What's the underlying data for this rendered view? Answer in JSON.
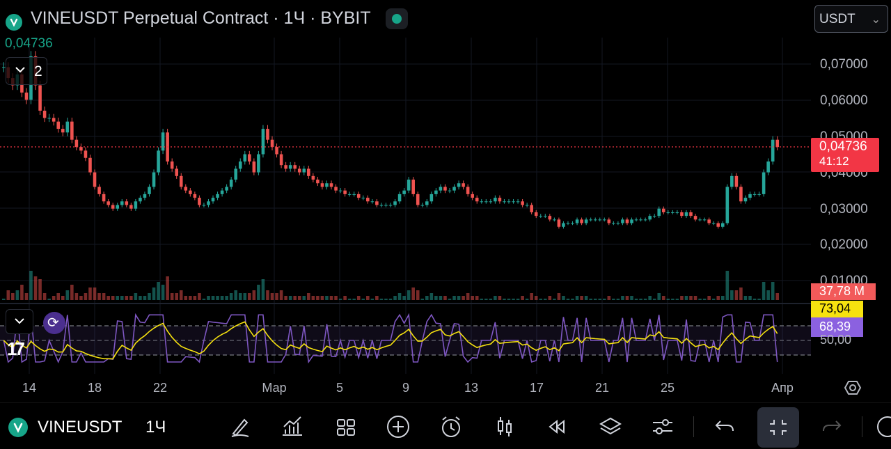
{
  "header": {
    "title": "VINEUSDT Perpetual Contract · 1Ч · BYBIT",
    "currency": "USDT",
    "last_price": "0,04736",
    "indicator_count": "2"
  },
  "price_axis": {
    "labels": [
      "0,07000",
      "0,06000",
      "0,05000",
      "0,04000",
      "0,03000",
      "0,02000",
      "0,01000"
    ]
  },
  "tags": {
    "price": "0,04736",
    "countdown": "41:12",
    "volume": "37,78 M",
    "rsi_ma": "73,04",
    "rsi": "68,39",
    "rsi_mid": "50,00"
  },
  "time_axis": {
    "labels": [
      "14",
      "18",
      "22",
      "Мар",
      "5",
      "9",
      "13",
      "17",
      "21",
      "25",
      "Апр"
    ]
  },
  "bottom_bar": {
    "symbol": "VINEUSDT",
    "interval": "1Ч",
    "tools": [
      "draw-icon",
      "indicators-icon",
      "layouts-icon",
      "add-icon",
      "alert-icon",
      "chart-type-icon",
      "replay-icon",
      "layers-icon",
      "settings-sliders-icon",
      "undo-icon",
      "fullscreen-exit-icon",
      "redo-icon"
    ]
  },
  "colors": {
    "up": "#26a69a",
    "down": "#ef5350",
    "rsi": "#7e57c2",
    "rsi_ma": "#f6e20f",
    "price_line": "#f23645"
  },
  "chart_data": {
    "type": "candlestick",
    "y_range": [
      0.005,
      0.076
    ],
    "last": 0.04736,
    "closes": [
      0.069,
      0.066,
      0.064,
      0.067,
      0.062,
      0.06,
      0.072,
      0.064,
      0.057,
      0.055,
      0.055,
      0.054,
      0.052,
      0.051,
      0.054,
      0.049,
      0.047,
      0.046,
      0.044,
      0.04,
      0.036,
      0.034,
      0.032,
      0.031,
      0.03,
      0.031,
      0.032,
      0.031,
      0.03,
      0.032,
      0.033,
      0.034,
      0.036,
      0.04,
      0.046,
      0.051,
      0.043,
      0.041,
      0.039,
      0.036,
      0.035,
      0.034,
      0.033,
      0.031,
      0.031,
      0.032,
      0.033,
      0.034,
      0.035,
      0.036,
      0.038,
      0.041,
      0.043,
      0.045,
      0.043,
      0.04,
      0.045,
      0.052,
      0.049,
      0.047,
      0.045,
      0.042,
      0.041,
      0.042,
      0.041,
      0.04,
      0.041,
      0.039,
      0.038,
      0.037,
      0.036,
      0.037,
      0.036,
      0.035,
      0.035,
      0.034,
      0.034,
      0.034,
      0.033,
      0.033,
      0.032,
      0.032,
      0.031,
      0.031,
      0.031,
      0.031,
      0.032,
      0.034,
      0.035,
      0.038,
      0.034,
      0.031,
      0.031,
      0.032,
      0.034,
      0.035,
      0.036,
      0.035,
      0.035,
      0.036,
      0.037,
      0.036,
      0.034,
      0.033,
      0.032,
      0.032,
      0.032,
      0.032,
      0.033,
      0.032,
      0.032,
      0.032,
      0.032,
      0.032,
      0.031,
      0.031,
      0.029,
      0.028,
      0.028,
      0.028,
      0.027,
      0.027,
      0.025,
      0.026,
      0.026,
      0.026,
      0.027,
      0.026,
      0.027,
      0.027,
      0.027,
      0.027,
      0.027,
      0.026,
      0.026,
      0.026,
      0.027,
      0.026,
      0.027,
      0.027,
      0.027,
      0.027,
      0.028,
      0.028,
      0.03,
      0.029,
      0.029,
      0.029,
      0.029,
      0.028,
      0.029,
      0.028,
      0.027,
      0.027,
      0.027,
      0.026,
      0.026,
      0.025,
      0.026,
      0.036,
      0.039,
      0.036,
      0.032,
      0.033,
      0.034,
      0.034,
      0.034,
      0.04,
      0.043,
      0.049,
      0.047
    ]
  }
}
